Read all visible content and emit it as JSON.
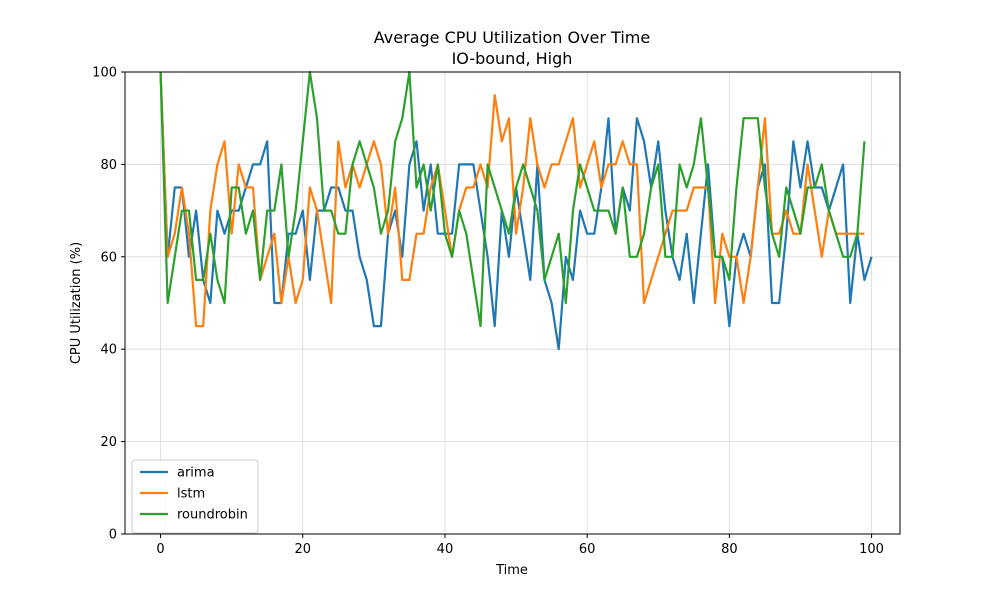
{
  "chart_data": {
    "type": "line",
    "title": "Average CPU Utilization Over Time",
    "subtitle": "IO-bound, High",
    "xlabel": "Time",
    "ylabel": "CPU Utilization (%)",
    "xlim": [
      -5,
      104
    ],
    "ylim": [
      0,
      100
    ],
    "xticks": [
      0,
      20,
      40,
      60,
      80,
      100
    ],
    "yticks": [
      0,
      20,
      40,
      60,
      80,
      100
    ],
    "grid": true,
    "legend_position": "lower-left",
    "series": [
      {
        "name": "arima",
        "color": "#1f77b4",
        "values": [
          100,
          60,
          75,
          75,
          60,
          70,
          55,
          50,
          70,
          65,
          70,
          70,
          75,
          80,
          80,
          85,
          50,
          50,
          65,
          65,
          70,
          55,
          70,
          70,
          75,
          75,
          70,
          70,
          60,
          55,
          45,
          45,
          65,
          70,
          60,
          80,
          85,
          70,
          80,
          65,
          65,
          65,
          80,
          80,
          80,
          70,
          60,
          45,
          70,
          60,
          75,
          65,
          55,
          80,
          55,
          50,
          40,
          60,
          55,
          70,
          65,
          65,
          75,
          90,
          65,
          75,
          70,
          90,
          85,
          75,
          85,
          70,
          60,
          55,
          65,
          50,
          65,
          80,
          60,
          60,
          45,
          60,
          65,
          60,
          75,
          80,
          50,
          50,
          65,
          85,
          75,
          85,
          75,
          75,
          70,
          75,
          80,
          50,
          65,
          55,
          60
        ]
      },
      {
        "name": "lstm",
        "color": "#ff7f0e",
        "values": [
          100,
          60,
          65,
          75,
          65,
          45,
          45,
          70,
          80,
          85,
          65,
          80,
          75,
          75,
          55,
          60,
          65,
          50,
          60,
          50,
          55,
          75,
          70,
          60,
          50,
          85,
          75,
          80,
          75,
          80,
          85,
          80,
          65,
          75,
          55,
          55,
          65,
          65,
          75,
          80,
          70,
          60,
          70,
          75,
          75,
          80,
          75,
          95,
          85,
          90,
          65,
          75,
          90,
          80,
          75,
          80,
          80,
          85,
          90,
          75,
          80,
          85,
          75,
          80,
          80,
          85,
          80,
          80,
          50,
          55,
          60,
          65,
          70,
          70,
          70,
          75,
          75,
          75,
          50,
          65,
          60,
          60,
          50,
          60,
          75,
          90,
          65,
          65,
          70,
          65,
          65,
          80,
          70,
          60,
          70,
          65,
          65,
          65,
          65,
          65
        ]
      },
      {
        "name": "roundrobin",
        "color": "#2ca02c",
        "values": [
          100,
          50,
          60,
          70,
          70,
          55,
          55,
          65,
          55,
          50,
          75,
          75,
          65,
          70,
          55,
          70,
          70,
          80,
          60,
          70,
          85,
          100,
          90,
          70,
          70,
          65,
          65,
          80,
          85,
          80,
          75,
          65,
          70,
          85,
          90,
          100,
          75,
          80,
          70,
          80,
          65,
          60,
          70,
          65,
          55,
          45,
          80,
          75,
          70,
          65,
          75,
          80,
          75,
          70,
          55,
          60,
          65,
          50,
          70,
          80,
          75,
          70,
          70,
          70,
          65,
          75,
          60,
          60,
          65,
          75,
          80,
          60,
          60,
          80,
          75,
          80,
          90,
          75,
          60,
          60,
          55,
          75,
          90,
          90,
          90,
          75,
          65,
          60,
          75,
          70,
          65,
          75,
          75,
          80,
          70,
          65,
          60,
          60,
          65,
          85
        ]
      }
    ]
  }
}
